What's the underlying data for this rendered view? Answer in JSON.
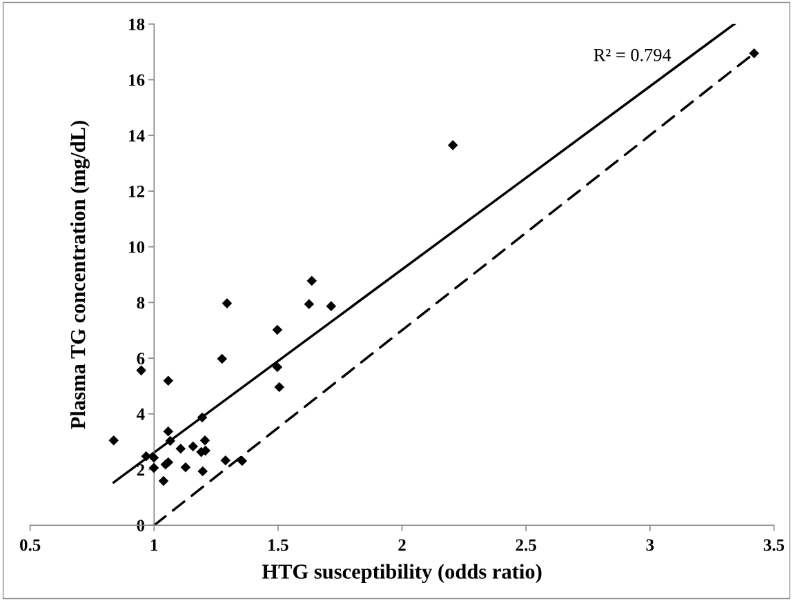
{
  "chart_data": {
    "type": "scatter",
    "xlabel": "HTG susceptibility (odds ratio)",
    "ylabel": "Plasma TG concentration (mg/dL)",
    "xlim": [
      0.5,
      3.5
    ],
    "xticks": [
      0.5,
      1,
      1.5,
      2,
      2.5,
      3,
      3.5
    ],
    "ylim": [
      0,
      18
    ],
    "yticks": [
      0,
      2,
      4,
      6,
      8,
      10,
      12,
      14,
      16,
      18
    ],
    "grid": false,
    "legend": false,
    "annotations": [
      "R² = 0.794"
    ],
    "series": [
      {
        "color": "#000000",
        "marker": "diamond",
        "x": [
          0.837,
          0.948,
          1.057,
          1.057,
          1.065,
          0.968,
          0.999,
          0.999,
          1.046,
          1.057,
          1.038,
          1.107,
          1.157,
          1.194,
          1.205,
          1.19,
          1.207,
          1.127,
          1.196,
          1.288,
          1.355,
          1.274,
          1.294,
          1.636,
          1.625,
          1.714,
          1.497,
          1.497,
          1.505,
          2.205,
          3.42
        ],
        "values": [
          3.05,
          5.56,
          5.19,
          3.37,
          3.03,
          2.48,
          2.43,
          2.06,
          2.18,
          2.26,
          1.59,
          2.75,
          2.83,
          3.87,
          3.05,
          2.63,
          2.68,
          2.08,
          1.94,
          2.33,
          2.31,
          5.98,
          7.97,
          8.78,
          7.94,
          7.87,
          7.02,
          5.68,
          4.96,
          13.65,
          16.95
        ]
      },
      {
        "type": "line",
        "color": "#000000",
        "line_style": "solid",
        "x": [
          0.837,
          3.34
        ],
        "values": [
          1.54,
          18
        ]
      },
      {
        "type": "line",
        "color": "#000000",
        "line_style": "dashed",
        "x": [
          1,
          3.42
        ],
        "values": [
          0,
          16.95
        ]
      }
    ]
  }
}
